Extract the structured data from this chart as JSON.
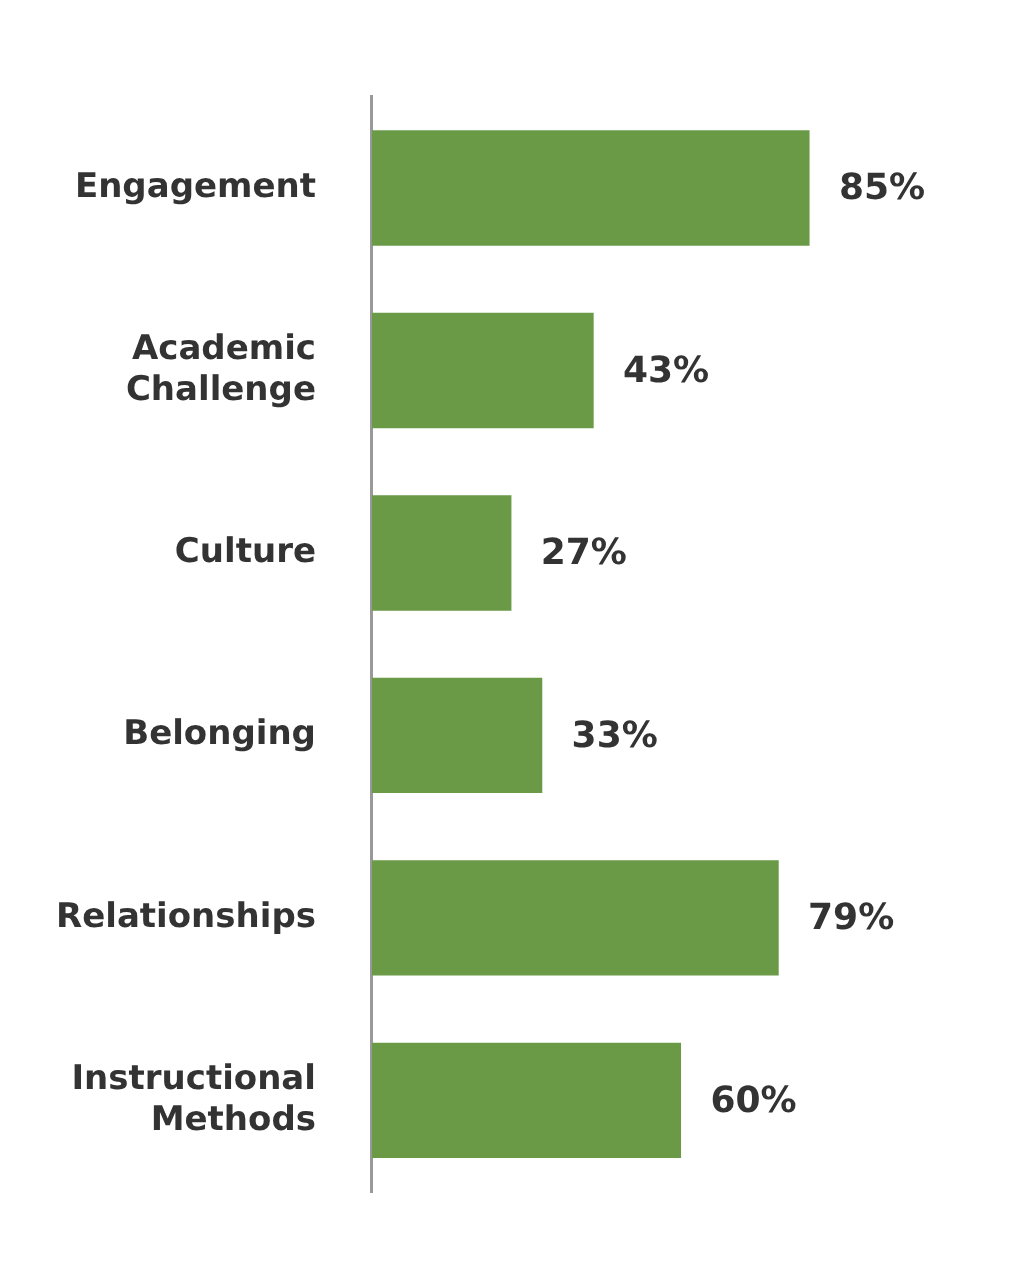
{
  "chart_data": {
    "type": "bar",
    "orientation": "horizontal",
    "categories": [
      "Engagement",
      "Academic Challenge",
      "Culture",
      "Belonging",
      "Relationships",
      "Instructional Methods"
    ],
    "values": [
      85,
      43,
      27,
      33,
      79,
      60
    ],
    "value_labels": [
      "85%",
      "43%",
      "27%",
      "33%",
      "79%",
      "60%"
    ],
    "color": "#6a9a46",
    "tick_labels": "y",
    "grid": false,
    "legend": false
  }
}
